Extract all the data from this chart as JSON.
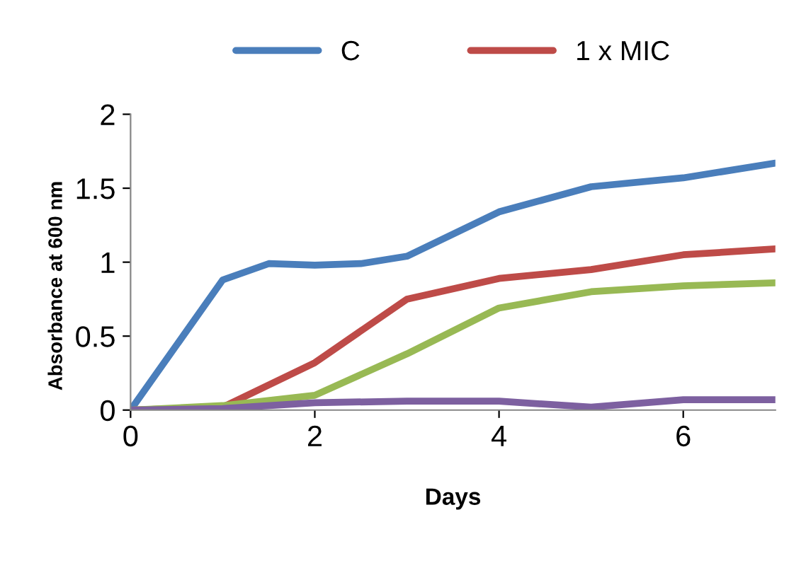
{
  "chart_data": {
    "type": "line",
    "xlabel": "Days",
    "ylabel": "Absorbance at 600 nm",
    "x": [
      0,
      1,
      2,
      3,
      4,
      5,
      6,
      7
    ],
    "series": [
      {
        "name": "C",
        "color": "#4a7ebb",
        "x": [
          0,
          1,
          1.5,
          2,
          2.5,
          3,
          4,
          5,
          6,
          7
        ],
        "values": [
          0,
          0.88,
          0.99,
          0.98,
          0.99,
          1.04,
          1.34,
          1.51,
          1.57,
          1.67
        ]
      },
      {
        "name": "1 x MIC",
        "color": "#be4b48",
        "values": [
          0,
          0.02,
          0.32,
          0.75,
          0.89,
          0.95,
          1.05,
          1.09
        ]
      },
      {
        "color": "#98b954",
        "values": [
          0,
          0.03,
          0.1,
          0.38,
          0.69,
          0.8,
          0.84,
          0.86
        ]
      },
      {
        "color": "#7d60a0",
        "values": [
          0,
          0.01,
          0.05,
          0.06,
          0.06,
          0.02,
          0.07,
          0.07
        ]
      }
    ],
    "xlim": [
      0,
      7
    ],
    "xticks": [
      0,
      2,
      4,
      6
    ],
    "ylim": [
      0,
      2
    ],
    "yticks": [
      0,
      0.5,
      1,
      1.5,
      2
    ],
    "grid": false,
    "legend": "top",
    "marker": "none",
    "line_style": "solid"
  }
}
